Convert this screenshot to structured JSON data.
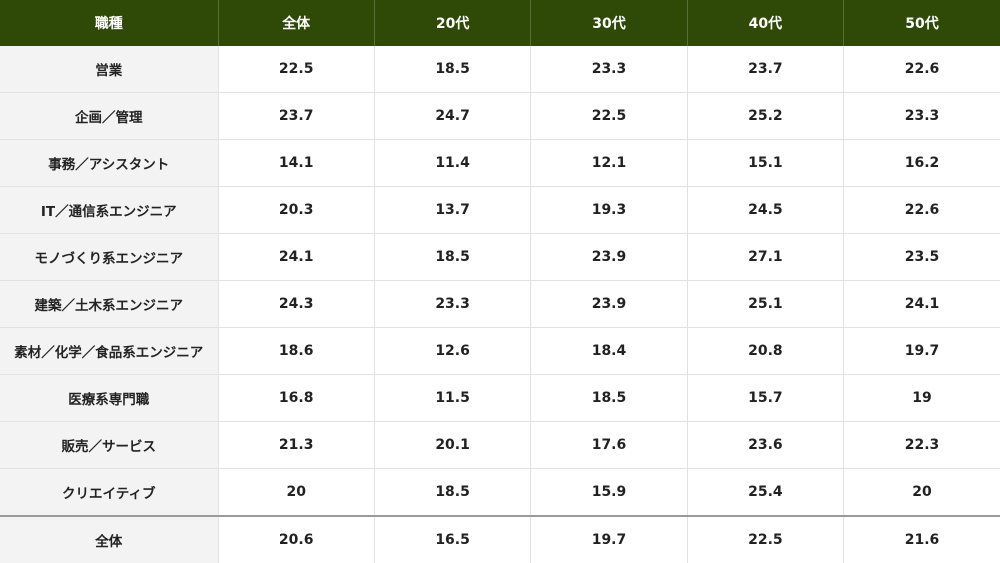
{
  "table": {
    "header": [
      "職種",
      "全体",
      "20代",
      "30代",
      "40代",
      "50代"
    ],
    "rows": [
      [
        "営業",
        "22.5",
        "18.5",
        "23.3",
        "23.7",
        "22.6"
      ],
      [
        "企画／管理",
        "23.7",
        "24.7",
        "22.5",
        "25.2",
        "23.3"
      ],
      [
        "事務／アシスタント",
        "14.1",
        "11.4",
        "12.1",
        "15.1",
        "16.2"
      ],
      [
        "IT／通信系エンジニア",
        "20.3",
        "13.7",
        "19.3",
        "24.5",
        "22.6"
      ],
      [
        "モノづくり系エンジニア",
        "24.1",
        "18.5",
        "23.9",
        "27.1",
        "23.5"
      ],
      [
        "建築／土木系エンジニア",
        "24.3",
        "23.3",
        "23.9",
        "25.1",
        "24.1"
      ],
      [
        "素材／化学／食品系エンジニア",
        "18.6",
        "12.6",
        "18.4",
        "20.8",
        "19.7"
      ],
      [
        "医療系専門職",
        "16.8",
        "11.5",
        "18.5",
        "15.7",
        "19"
      ],
      [
        "販売／サービス",
        "21.3",
        "20.1",
        "17.6",
        "23.6",
        "22.3"
      ],
      [
        "クリエイティブ",
        "20",
        "18.5",
        "15.9",
        "25.4",
        "20"
      ],
      [
        "全体",
        "20.6",
        "16.5",
        "19.7",
        "22.5",
        "21.6"
      ]
    ]
  }
}
